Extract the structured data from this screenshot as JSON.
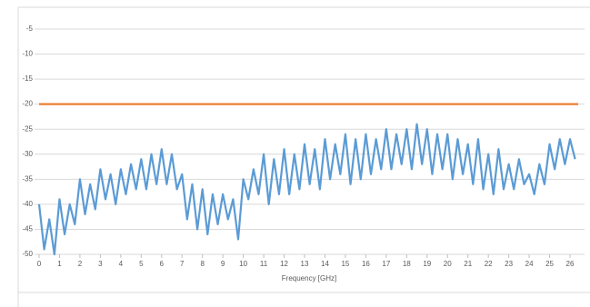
{
  "chart_data": {
    "type": "line",
    "x_label": "Frequency [GHz]",
    "xlim": [
      0,
      26.4
    ],
    "xticks": [
      0,
      1,
      2,
      3,
      4,
      5,
      6,
      7,
      8,
      9,
      10,
      11,
      12,
      13,
      14,
      15,
      16,
      17,
      18,
      19,
      20,
      21,
      22,
      23,
      24,
      25,
      26
    ],
    "ylim": [
      -50,
      0
    ],
    "yticks": [
      -50,
      -45,
      -40,
      -35,
      -30,
      -25,
      -20,
      -15,
      -10,
      -5
    ],
    "grid": true,
    "series": [
      {
        "color": "#5b9bd5",
        "x": [
          0,
          0.25,
          0.5,
          0.75,
          1,
          1.25,
          1.5,
          1.75,
          2,
          2.25,
          2.5,
          2.75,
          3,
          3.25,
          3.5,
          3.75,
          4,
          4.25,
          4.5,
          4.75,
          5,
          5.25,
          5.5,
          5.75,
          6,
          6.25,
          6.5,
          6.75,
          7,
          7.25,
          7.5,
          7.75,
          8,
          8.25,
          8.5,
          8.75,
          9,
          9.25,
          9.5,
          9.75,
          10,
          10.25,
          10.5,
          10.75,
          11,
          11.25,
          11.5,
          11.75,
          12,
          12.25,
          12.5,
          12.75,
          13,
          13.25,
          13.5,
          13.75,
          14,
          14.25,
          14.5,
          14.75,
          15,
          15.25,
          15.5,
          15.75,
          16,
          16.25,
          16.5,
          16.75,
          17,
          17.25,
          17.5,
          17.75,
          18,
          18.25,
          18.5,
          18.75,
          19,
          19.25,
          19.5,
          19.75,
          20,
          20.25,
          20.5,
          20.75,
          21,
          21.25,
          21.5,
          21.75,
          22,
          22.25,
          22.5,
          22.75,
          23,
          23.25,
          23.5,
          23.75,
          24,
          24.25,
          24.5,
          24.75,
          25,
          25.25,
          25.5,
          25.75,
          26,
          26.25
        ],
        "values": [
          -40,
          -49,
          -43,
          -50,
          -39,
          -46,
          -40,
          -44,
          -35,
          -42,
          -36,
          -41,
          -33,
          -39,
          -34,
          -40,
          -33,
          -38,
          -32,
          -37,
          -31,
          -37,
          -30,
          -36,
          -29,
          -36,
          -30,
          -37,
          -34,
          -43,
          -36,
          -45,
          -37,
          -46,
          -38,
          -44,
          -38,
          -43,
          -39,
          -47,
          -35,
          -39,
          -33,
          -38,
          -30,
          -40,
          -31,
          -38,
          -29,
          -38,
          -30,
          -37,
          -28,
          -36,
          -29,
          -37,
          -27,
          -35,
          -28,
          -34,
          -26,
          -36,
          -27,
          -35,
          -26,
          -34,
          -27,
          -33,
          -25,
          -33,
          -26,
          -32,
          -25,
          -33,
          -24,
          -32,
          -25,
          -34,
          -26,
          -33,
          -26,
          -35,
          -27,
          -34,
          -28,
          -36,
          -27,
          -37,
          -30,
          -38,
          -29,
          -37,
          -32,
          -37,
          -31,
          -36,
          -34,
          -38,
          -32,
          -36,
          -28,
          -33,
          -27,
          -32,
          -27,
          -31
        ]
      },
      {
        "color": "#ed7d31",
        "x": [
          0,
          26.4
        ],
        "values": [
          -20,
          -20
        ]
      }
    ]
  }
}
